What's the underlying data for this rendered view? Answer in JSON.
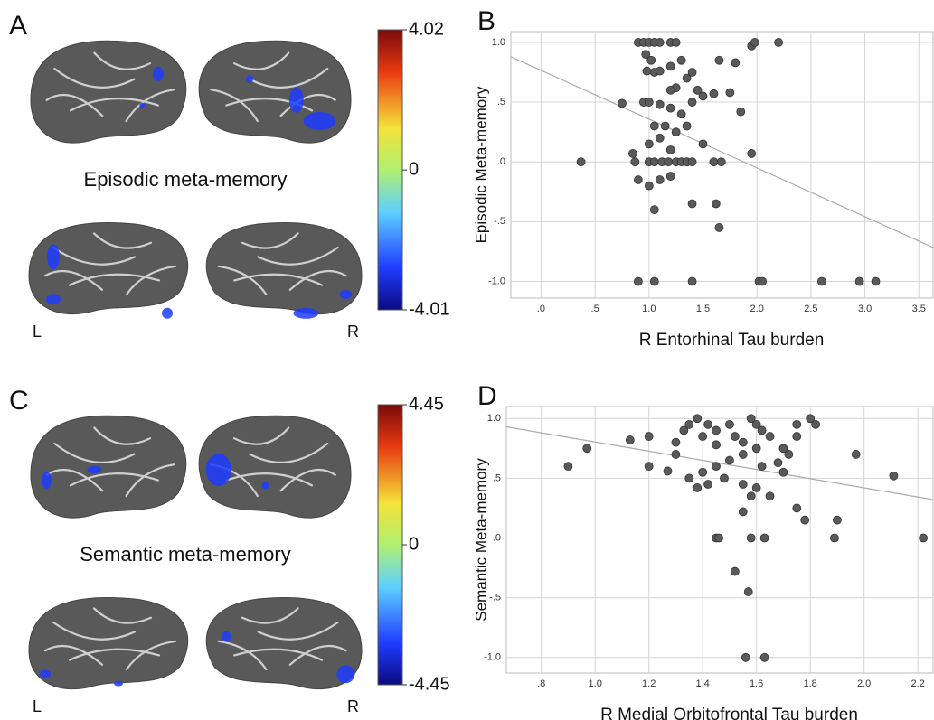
{
  "figure": {
    "panels": [
      {
        "label": "A",
        "title": "Episodic meta-memory",
        "left": "L",
        "right": "R",
        "colorbar": {
          "lim": [
            -4.01,
            4.02
          ],
          "ticks": [
            4.02,
            0,
            -4.01
          ]
        }
      },
      {
        "label": "C",
        "title": "Semantic meta-memory",
        "left": "L",
        "right": "R",
        "colorbar": {
          "lim": [
            -4.45,
            4.45
          ],
          "ticks": [
            4.45,
            0,
            -4.45
          ]
        }
      }
    ]
  },
  "chart_data": [
    {
      "type": "scatter",
      "panel": "B",
      "xlabel": "R Entorhinal Tau burden",
      "ylabel": "Episodic Meta-memory",
      "color": "#5a5a5a",
      "grid": true,
      "x": [
        0.37,
        0.75,
        0.9,
        0.95,
        1.0,
        1.05,
        1.1,
        1.2,
        1.25,
        0.97,
        1.02,
        1.05,
        0.98,
        1.1,
        1.2,
        1.3,
        1.25,
        1.2,
        1.35,
        1.4,
        1.45,
        0.95,
        1.0,
        1.1,
        1.2,
        1.3,
        1.4,
        1.05,
        1.15,
        1.25,
        1.35,
        1.0,
        1.1,
        1.2,
        1.5,
        0.85,
        0.87,
        1.0,
        1.05,
        1.12,
        1.18,
        1.25,
        1.3,
        1.35,
        1.4,
        1.6,
        1.67,
        1.95,
        0.9,
        1.0,
        1.1,
        1.2,
        1.05,
        1.4,
        1.62,
        1.65,
        1.5,
        1.6,
        1.75,
        1.85,
        1.65,
        1.8,
        1.95,
        1.98,
        2.2,
        0.9,
        1.05,
        1.4,
        2.02,
        2.05,
        2.6,
        2.95,
        3.1
      ],
      "y": [
        0,
        0.49,
        1,
        1,
        1,
        1,
        1,
        1,
        1,
        0.9,
        0.85,
        0.75,
        0.76,
        0.76,
        0.8,
        0.85,
        0.62,
        0.6,
        0.7,
        0.75,
        0.6,
        0.5,
        0.5,
        0.48,
        0.45,
        0.4,
        0.5,
        0.3,
        0.3,
        0.25,
        0.3,
        0.15,
        0.2,
        0.1,
        0.15,
        0.07,
        0,
        0,
        0,
        0,
        0,
        0,
        0,
        0,
        0,
        0,
        0,
        0.07,
        -0.15,
        -0.2,
        -0.15,
        -0.12,
        -0.4,
        -0.35,
        -0.35,
        -0.55,
        0.55,
        0.57,
        0.58,
        0.42,
        0.85,
        0.83,
        0.97,
        1,
        1,
        -1,
        -1,
        -1,
        -1,
        -1,
        -1,
        -1,
        -1
      ],
      "trend_x": [
        -0.28,
        3.64
      ],
      "trend_y": [
        0.88,
        -0.72
      ],
      "xlim": [
        -0.28,
        3.64
      ],
      "ylim": [
        -1.14,
        1.09
      ],
      "xticks": [
        {
          "value": 0,
          "label": ".0"
        },
        {
          "value": 0.5,
          "label": ".5"
        },
        {
          "value": 1,
          "label": "1.0"
        },
        {
          "value": 1.5,
          "label": "1.5"
        },
        {
          "value": 2,
          "label": "2.0"
        },
        {
          "value": 2.5,
          "label": "2.5"
        },
        {
          "value": 3,
          "label": "3.0"
        },
        {
          "value": 3.5,
          "label": "3.5"
        }
      ],
      "yticks": [
        {
          "value": 1,
          "label": "1.0"
        },
        {
          "value": 0.5,
          "label": ".5"
        },
        {
          "value": 0,
          "label": ".0"
        },
        {
          "value": -0.5,
          "label": "-.5"
        },
        {
          "value": -1,
          "label": "-1.0"
        }
      ]
    },
    {
      "type": "scatter",
      "panel": "D",
      "xlabel": "R Medial Orbitofrontal Tau burden",
      "ylabel": "Semantic Meta-memory",
      "color": "#5a5a5a",
      "grid": true,
      "x": [
        0.9,
        0.97,
        1.13,
        1.2,
        1.2,
        1.27,
        1.3,
        1.3,
        1.33,
        1.35,
        1.38,
        1.4,
        1.42,
        1.45,
        1.45,
        1.5,
        1.52,
        1.55,
        1.58,
        1.6,
        1.62,
        1.65,
        1.6,
        1.55,
        1.5,
        1.45,
        1.4,
        1.35,
        1.38,
        1.42,
        1.48,
        1.55,
        1.6,
        1.62,
        1.7,
        1.72,
        1.75,
        1.8,
        1.82,
        1.7,
        1.65,
        1.58,
        1.55,
        1.75,
        1.78,
        1.9,
        1.89,
        1.97,
        2.11,
        2.22,
        1.45,
        1.46,
        1.58,
        1.63,
        1.52,
        1.57,
        1.56,
        1.63,
        1.68,
        1.75
      ],
      "y": [
        0.6,
        0.75,
        0.82,
        0.85,
        0.6,
        0.56,
        0.7,
        0.8,
        0.9,
        0.95,
        1,
        0.85,
        0.95,
        0.9,
        0.78,
        0.95,
        0.85,
        0.8,
        1,
        0.95,
        0.9,
        0.85,
        0.75,
        0.7,
        0.65,
        0.6,
        0.55,
        0.5,
        0.42,
        0.45,
        0.5,
        0.45,
        0.42,
        0.6,
        0.55,
        0.7,
        0.85,
        1,
        0.95,
        0.75,
        0.35,
        0.35,
        0.22,
        0.25,
        0.15,
        0.15,
        0,
        0.7,
        0.52,
        0,
        0,
        0,
        0,
        0,
        -0.28,
        -0.45,
        -1,
        -1,
        0.63,
        0.95
      ],
      "trend_x": [
        0.67,
        2.26
      ],
      "trend_y": [
        0.93,
        0.32
      ],
      "xlim": [
        0.67,
        2.26
      ],
      "ylim": [
        -1.13,
        1.1
      ],
      "xticks": [
        {
          "value": 0.8,
          "label": ".8"
        },
        {
          "value": 1,
          "label": "1.0"
        },
        {
          "value": 1.2,
          "label": "1.2"
        },
        {
          "value": 1.4,
          "label": "1.4"
        },
        {
          "value": 1.6,
          "label": "1.6"
        },
        {
          "value": 1.8,
          "label": "1.8"
        },
        {
          "value": 2,
          "label": "2.0"
        },
        {
          "value": 2.2,
          "label": "2.2"
        }
      ],
      "yticks": [
        {
          "value": 1,
          "label": "1.0"
        },
        {
          "value": 0.5,
          "label": ".5"
        },
        {
          "value": 0,
          "label": ".0"
        },
        {
          "value": -0.5,
          "label": "-.5"
        },
        {
          "value": -1,
          "label": "-1.0"
        }
      ]
    }
  ]
}
